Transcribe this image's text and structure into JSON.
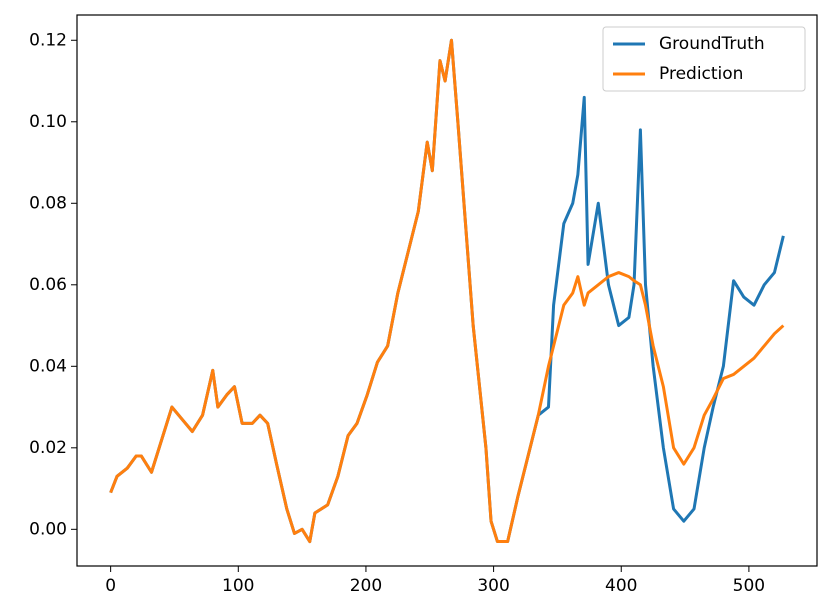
{
  "chart_data": {
    "type": "line",
    "x": [
      0,
      5,
      13,
      20,
      24,
      32,
      40,
      48,
      56,
      64,
      72,
      80,
      84,
      91,
      97,
      103,
      111,
      117,
      123,
      130,
      138,
      144,
      150,
      156,
      160,
      170,
      178,
      186,
      193,
      201,
      209,
      217,
      225,
      233,
      241,
      248,
      252,
      258,
      262,
      267,
      272,
      278,
      284,
      289,
      294,
      298,
      303,
      311,
      319,
      327,
      335,
      343,
      347,
      355,
      362,
      366,
      371,
      374,
      382,
      390,
      398,
      406,
      410,
      415,
      419,
      425,
      433,
      441,
      449,
      457,
      465,
      472,
      480,
      488,
      496,
      504,
      512,
      520,
      527
    ],
    "series": [
      {
        "name": "GroundTruth",
        "color": "#1f77b4",
        "values": [
          0.009,
          0.013,
          0.015,
          0.018,
          0.018,
          0.014,
          0.022,
          0.03,
          0.027,
          0.024,
          0.028,
          0.039,
          0.03,
          0.033,
          0.035,
          0.026,
          0.026,
          0.028,
          0.026,
          0.016,
          0.005,
          -0.001,
          0.0,
          -0.003,
          0.004,
          0.006,
          0.013,
          0.023,
          0.026,
          0.033,
          0.041,
          0.045,
          0.058,
          0.068,
          0.078,
          0.095,
          0.088,
          0.115,
          0.11,
          0.12,
          0.1,
          0.075,
          0.05,
          0.035,
          0.02,
          0.002,
          -0.003,
          -0.003,
          0.008,
          0.018,
          0.028,
          0.03,
          0.055,
          0.075,
          0.08,
          0.087,
          0.106,
          0.065,
          0.08,
          0.06,
          0.05,
          0.052,
          0.06,
          0.098,
          0.06,
          0.04,
          0.02,
          0.005,
          0.002,
          0.005,
          0.02,
          0.03,
          0.04,
          0.061,
          0.057,
          0.055,
          0.06,
          0.063,
          0.072
        ]
      },
      {
        "name": "Prediction",
        "color": "#ff7f0e",
        "values": [
          0.009,
          0.013,
          0.015,
          0.018,
          0.018,
          0.014,
          0.022,
          0.03,
          0.027,
          0.024,
          0.028,
          0.039,
          0.03,
          0.033,
          0.035,
          0.026,
          0.026,
          0.028,
          0.026,
          0.016,
          0.005,
          -0.001,
          0.0,
          -0.003,
          0.004,
          0.006,
          0.013,
          0.023,
          0.026,
          0.033,
          0.041,
          0.045,
          0.058,
          0.068,
          0.078,
          0.095,
          0.088,
          0.115,
          0.11,
          0.12,
          0.1,
          0.075,
          0.05,
          0.035,
          0.02,
          0.002,
          -0.003,
          -0.003,
          0.008,
          0.018,
          0.028,
          0.04,
          0.045,
          0.055,
          0.058,
          0.062,
          0.055,
          0.058,
          0.06,
          0.062,
          0.063,
          0.062,
          0.061,
          0.06,
          0.055,
          0.045,
          0.035,
          0.02,
          0.016,
          0.02,
          0.028,
          0.032,
          0.037,
          0.038,
          0.04,
          0.042,
          0.045,
          0.048,
          0.05
        ]
      }
    ],
    "xlim": [
      -26.35,
      553.35
    ],
    "xticks": [
      0,
      100,
      200,
      300,
      400,
      500
    ],
    "ylim": [
      -0.009,
      0.1262
    ],
    "yticks": [
      {
        "value": 0,
        "label": "0.00"
      },
      {
        "value": 0.02,
        "label": "0.02"
      },
      {
        "value": 0.04,
        "label": "0.04"
      },
      {
        "value": 0.06,
        "label": "0.06"
      },
      {
        "value": 0.08,
        "label": "0.08"
      },
      {
        "value": 0.1,
        "label": "0.10"
      },
      {
        "value": 0.12,
        "label": "0.12"
      }
    ],
    "legend": "upper right",
    "grid": false
  }
}
